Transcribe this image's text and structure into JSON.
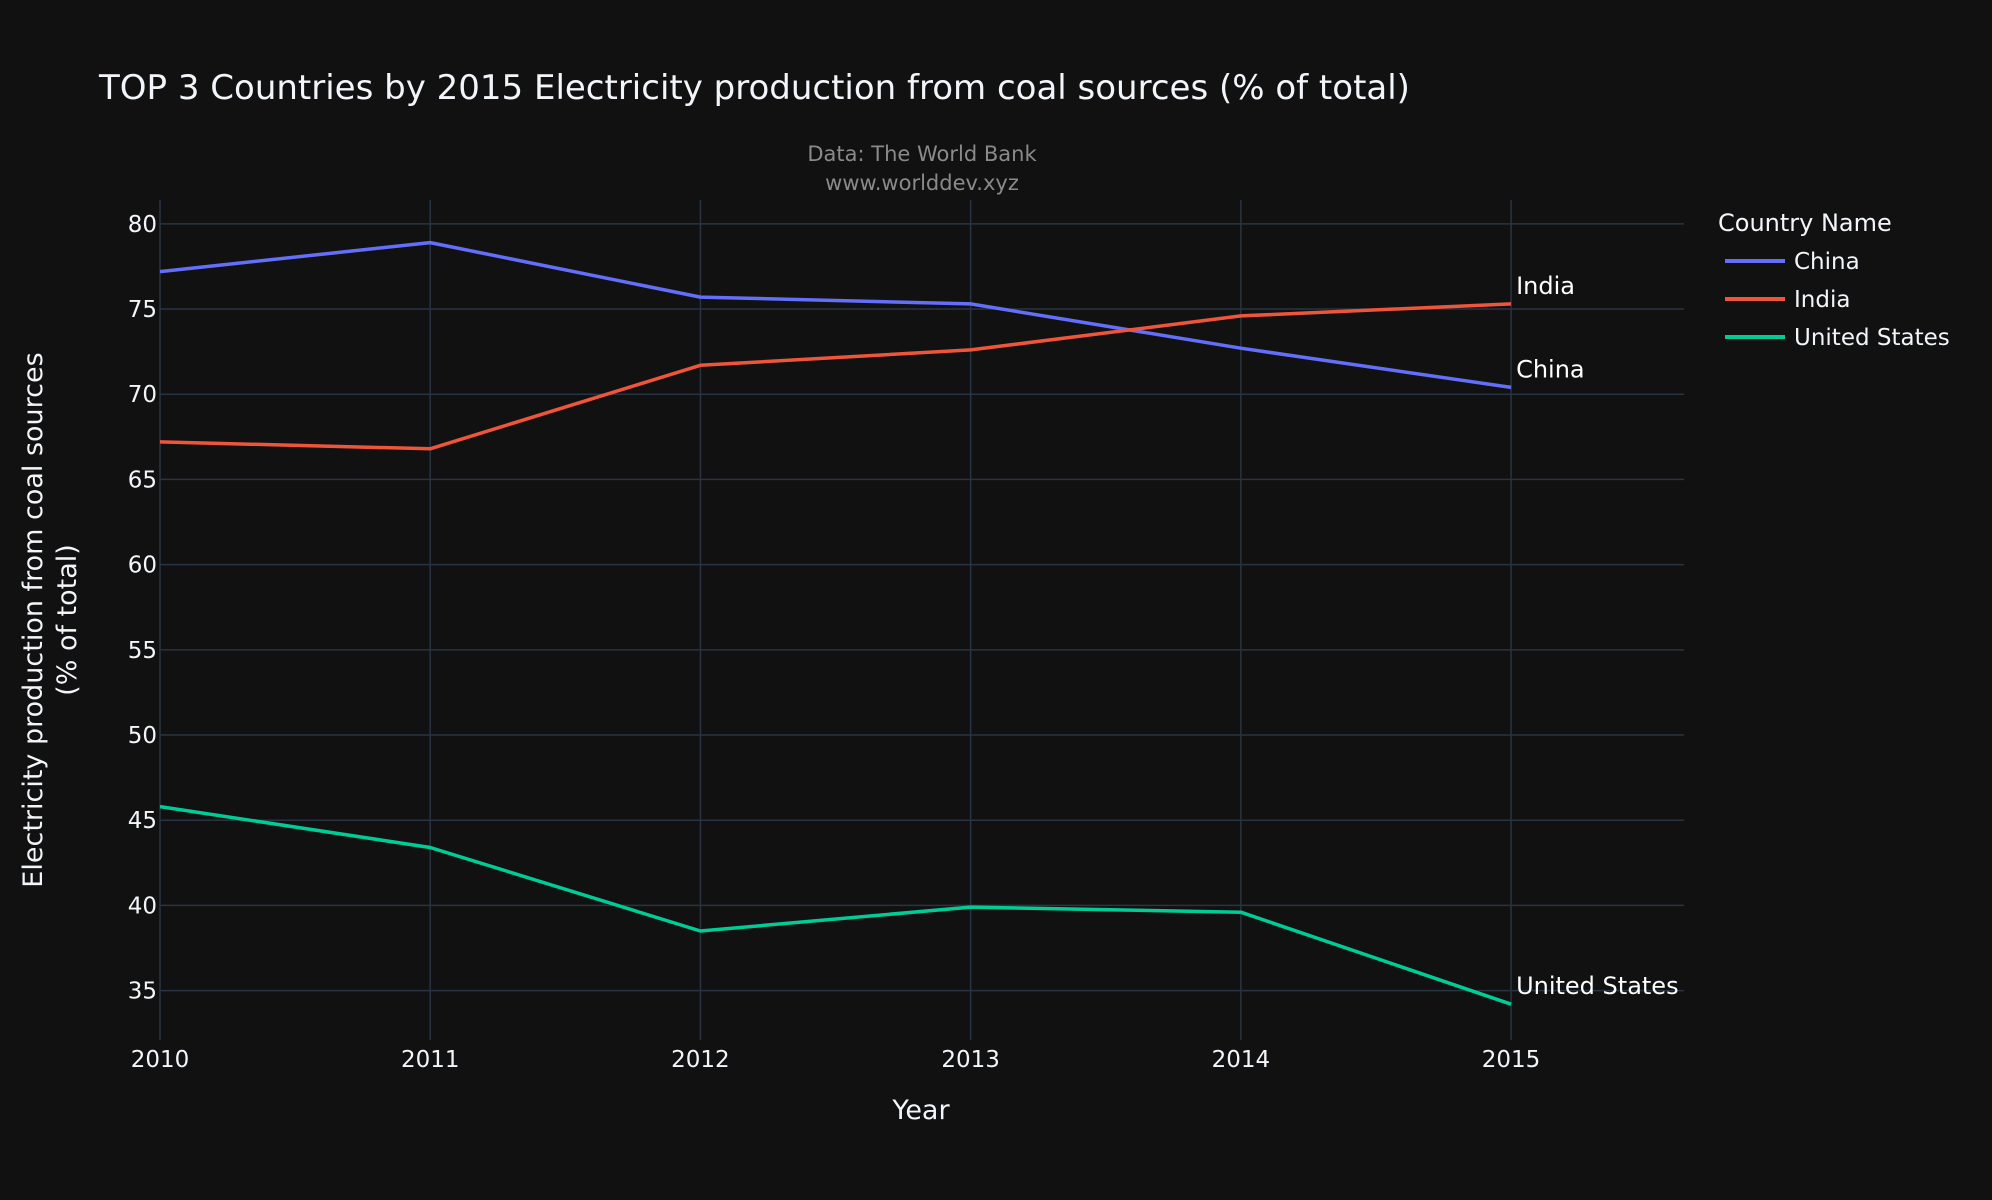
{
  "chart_data": {
    "type": "line",
    "title": "TOP 3 Countries by 2015 Electricity production from coal sources (% of total)",
    "subtitle_line1": "Data: The World Bank",
    "subtitle_line2": "www.worlddev.xyz",
    "xlabel": "Year",
    "ylabel_line1": "Electricity production from coal sources",
    "ylabel_line2": "(% of total)",
    "x": [
      2010,
      2011,
      2012,
      2013,
      2014,
      2015
    ],
    "xlim": [
      2010,
      2015.64
    ],
    "ylim": [
      32.1,
      81.4
    ],
    "yticks": [
      35,
      40,
      45,
      50,
      55,
      60,
      65,
      70,
      75,
      80
    ],
    "grid": true,
    "legend": {
      "title": "Country Name",
      "placement": "top-right, outside plot"
    },
    "series": [
      {
        "name": "China",
        "color": "#636efa",
        "values": [
          77.2,
          78.9,
          75.7,
          75.3,
          72.7,
          70.4
        ]
      },
      {
        "name": "India",
        "color": "#ef553b",
        "values": [
          67.2,
          66.8,
          71.7,
          72.6,
          74.6,
          75.3
        ]
      },
      {
        "name": "United States",
        "color": "#00cc96",
        "values": [
          45.8,
          43.4,
          38.5,
          39.9,
          39.6,
          34.2
        ]
      }
    ],
    "annotations": [
      "India",
      "China",
      "United States"
    ]
  }
}
